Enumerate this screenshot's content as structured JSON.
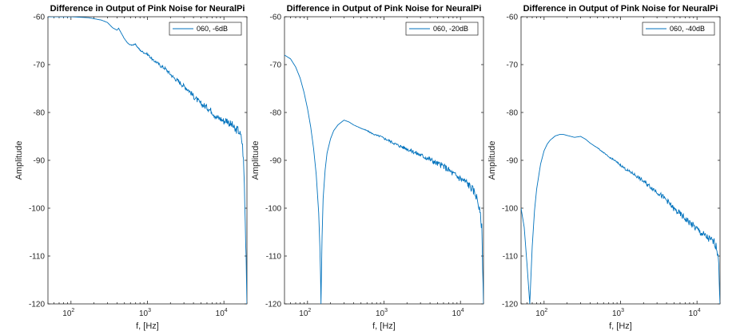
{
  "chart_data": [
    {
      "type": "line",
      "title": "Difference in Output of Pink Noise for NeuralPi",
      "xlabel": "f, [Hz]",
      "ylabel": "Amplitude",
      "xscale": "log",
      "xlim": [
        50,
        20000
      ],
      "ylim": [
        -120,
        -60
      ],
      "xticks": [
        {
          "value": 100,
          "base": "10",
          "exp": "2"
        },
        {
          "value": 1000,
          "base": "10",
          "exp": "3"
        },
        {
          "value": 10000,
          "base": "10",
          "exp": "4"
        }
      ],
      "yticks": [
        -60,
        -70,
        -80,
        -90,
        -100,
        -110,
        -120
      ],
      "grid": false,
      "legend_position": "top-right",
      "color": "#0072BD",
      "series": [
        {
          "name": "060, -6dB",
          "x": [
            50,
            100,
            170,
            250,
            300,
            350,
            400,
            420,
            450,
            500,
            550,
            600,
            700,
            800,
            900,
            1000,
            1100,
            1200,
            1300,
            1500,
            1700,
            2000,
            2200,
            2500,
            3000,
            3500,
            4000,
            5000,
            6000,
            7000,
            8000,
            9000,
            10000,
            11000,
            12000,
            13000,
            14000,
            15000,
            16000,
            17000,
            17500,
            18000,
            18500,
            19000,
            19500,
            20000
          ],
          "y": [
            -60,
            -60,
            -60.2,
            -60.7,
            -61.2,
            -62.3,
            -62.8,
            -62.4,
            -63.3,
            -64.6,
            -65.5,
            -65.9,
            -65.8,
            -67.0,
            -67.5,
            -67.8,
            -68.5,
            -69.2,
            -69.4,
            -70.3,
            -70.8,
            -72.0,
            -72.7,
            -73.4,
            -74.5,
            -75.4,
            -76.6,
            -78.2,
            -78.9,
            -79.8,
            -81.0,
            -81.3,
            -81.8,
            -81.6,
            -82.4,
            -82.7,
            -83.8,
            -83.5,
            -84.2,
            -85.5,
            -87.0,
            -90.0,
            -95.0,
            -103.0,
            -110.0,
            -120.0
          ]
        },
        {
          "name": "060, -20dB",
          "x": [
            50,
            60,
            70,
            80,
            90,
            100,
            110,
            120,
            130,
            140,
            145,
            148,
            150,
            152,
            155,
            160,
            170,
            180,
            200,
            220,
            250,
            300,
            350,
            400,
            500,
            600,
            700,
            800,
            900,
            1000,
            1200,
            1500,
            2000,
            2500,
            3000,
            4000,
            5000,
            6000,
            7000,
            8000,
            10000,
            12000,
            14000,
            15000,
            16000,
            17000,
            18000,
            19000,
            20000
          ],
          "y": [
            -68.0,
            -68.8,
            -70.5,
            -72.8,
            -75.8,
            -79.2,
            -83.0,
            -87.5,
            -93.0,
            -101.0,
            -108.0,
            -114.0,
            -120.0,
            -114.0,
            -106.0,
            -98.0,
            -92.0,
            -88.5,
            -85.5,
            -83.8,
            -82.6,
            -81.6,
            -82.0,
            -82.6,
            -83.3,
            -83.8,
            -84.4,
            -84.8,
            -85.0,
            -85.4,
            -86.0,
            -86.8,
            -87.6,
            -88.3,
            -88.9,
            -89.8,
            -90.7,
            -91.2,
            -92.0,
            -92.8,
            -93.8,
            -94.6,
            -95.8,
            -96.5,
            -97.3,
            -98.8,
            -101.0,
            -104.0,
            -120.0
          ]
        },
        {
          "name": "060, -40dB",
          "x": [
            50,
            55,
            60,
            65,
            70,
            75,
            80,
            90,
            100,
            110,
            120,
            140,
            160,
            180,
            200,
            250,
            300,
            350,
            400,
            500,
            600,
            700,
            800,
            1000,
            1200,
            1500,
            2000,
            2500,
            3000,
            4000,
            5000,
            6000,
            7000,
            8000,
            10000,
            12000,
            14000,
            15000,
            16000,
            17000,
            18000,
            19000,
            20000
          ],
          "y": [
            -100.0,
            -104.0,
            -112.0,
            -120.0,
            -108.0,
            -100.5,
            -96.0,
            -90.8,
            -88.0,
            -86.6,
            -85.8,
            -84.9,
            -84.6,
            -84.6,
            -84.8,
            -85.2,
            -85.0,
            -85.6,
            -86.4,
            -87.4,
            -88.4,
            -89.3,
            -89.8,
            -91.0,
            -92.0,
            -92.9,
            -94.4,
            -95.6,
            -96.6,
            -98.3,
            -100.2,
            -101.2,
            -102.2,
            -103.0,
            -104.4,
            -105.5,
            -106.3,
            -106.7,
            -106.9,
            -107.2,
            -108.2,
            -110.0,
            -120.0
          ]
        }
      ]
    }
  ]
}
